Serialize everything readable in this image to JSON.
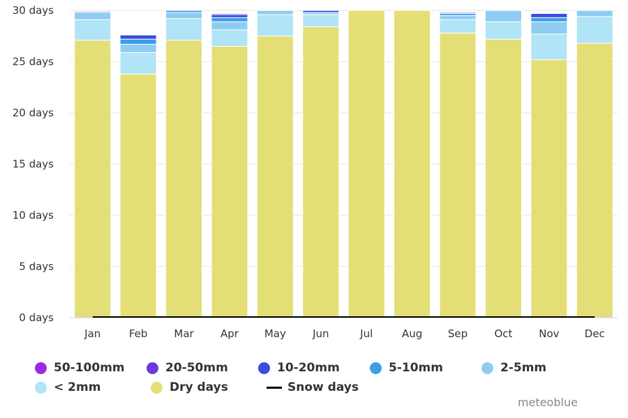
{
  "chart_data": {
    "type": "bar",
    "stacked": true,
    "categories": [
      "Jan",
      "Feb",
      "Mar",
      "Apr",
      "May",
      "Jun",
      "Jul",
      "Aug",
      "Sep",
      "Oct",
      "Nov",
      "Dec"
    ],
    "ytick_labels": [
      "0 days",
      "5 days",
      "10 days",
      "15 days",
      "20 days",
      "25 days",
      "30 days"
    ],
    "ytick_values": [
      0,
      5,
      10,
      15,
      20,
      25,
      30
    ],
    "ylim": [
      0,
      30
    ],
    "grid": true,
    "legend_position": "bottom",
    "series": [
      {
        "name": "Dry days",
        "color": "#e3df76",
        "values": [
          27.1,
          23.8,
          27.1,
          26.5,
          27.5,
          28.4,
          30,
          30,
          27.8,
          27.2,
          25.2,
          26.8
        ]
      },
      {
        "name": "< 2mm",
        "color": "#b0e4f6",
        "values": [
          2.0,
          2.1,
          2.1,
          1.6,
          2.1,
          1.2,
          0,
          0,
          1.3,
          1.7,
          2.5,
          2.6
        ]
      },
      {
        "name": "2-5mm",
        "color": "#8ecdf1",
        "values": [
          0.7,
          0.8,
          0.6,
          0.8,
          0.4,
          0.2,
          0,
          0,
          0.4,
          1.1,
          1.2,
          0.6
        ]
      },
      {
        "name": "5-10mm",
        "color": "#3a9eea",
        "values": [
          0.1,
          0.5,
          0.2,
          0.4,
          0,
          0,
          0,
          0,
          0.2,
          0,
          0.4,
          0
        ]
      },
      {
        "name": "10-20mm",
        "color": "#3a4de0",
        "values": [
          0,
          0.4,
          0,
          0.3,
          0,
          0.2,
          0,
          0,
          0.1,
          0,
          0.4,
          0
        ]
      },
      {
        "name": "20-50mm",
        "color": "#6c39e0",
        "values": [
          0,
          0,
          0,
          0.1,
          0,
          0,
          0,
          0,
          0,
          0,
          0,
          0
        ]
      },
      {
        "name": "50-100mm",
        "color": "#9b2ae0",
        "values": [
          0,
          0,
          0,
          0,
          0,
          0,
          0,
          0,
          0,
          0,
          0,
          0
        ]
      }
    ],
    "snow_days": {
      "name": "Snow days",
      "color": "#000000",
      "values": [
        0,
        0,
        0,
        0,
        0,
        0,
        0,
        0,
        0,
        0,
        0,
        0
      ]
    }
  },
  "legend": {
    "row1": [
      {
        "label": "50-100mm",
        "color": "#9b2ae0"
      },
      {
        "label": "20-50mm",
        "color": "#6c39e0"
      },
      {
        "label": "10-20mm",
        "color": "#3a4de0"
      },
      {
        "label": "5-10mm",
        "color": "#3a9eea"
      },
      {
        "label": "2-5mm",
        "color": "#8ecdf1"
      }
    ],
    "row2": [
      {
        "label": "< 2mm",
        "color": "#b0e4f6"
      },
      {
        "label": "Dry days",
        "color": "#e3df76"
      }
    ],
    "snow_label": "Snow days"
  },
  "credit": "meteoblue"
}
